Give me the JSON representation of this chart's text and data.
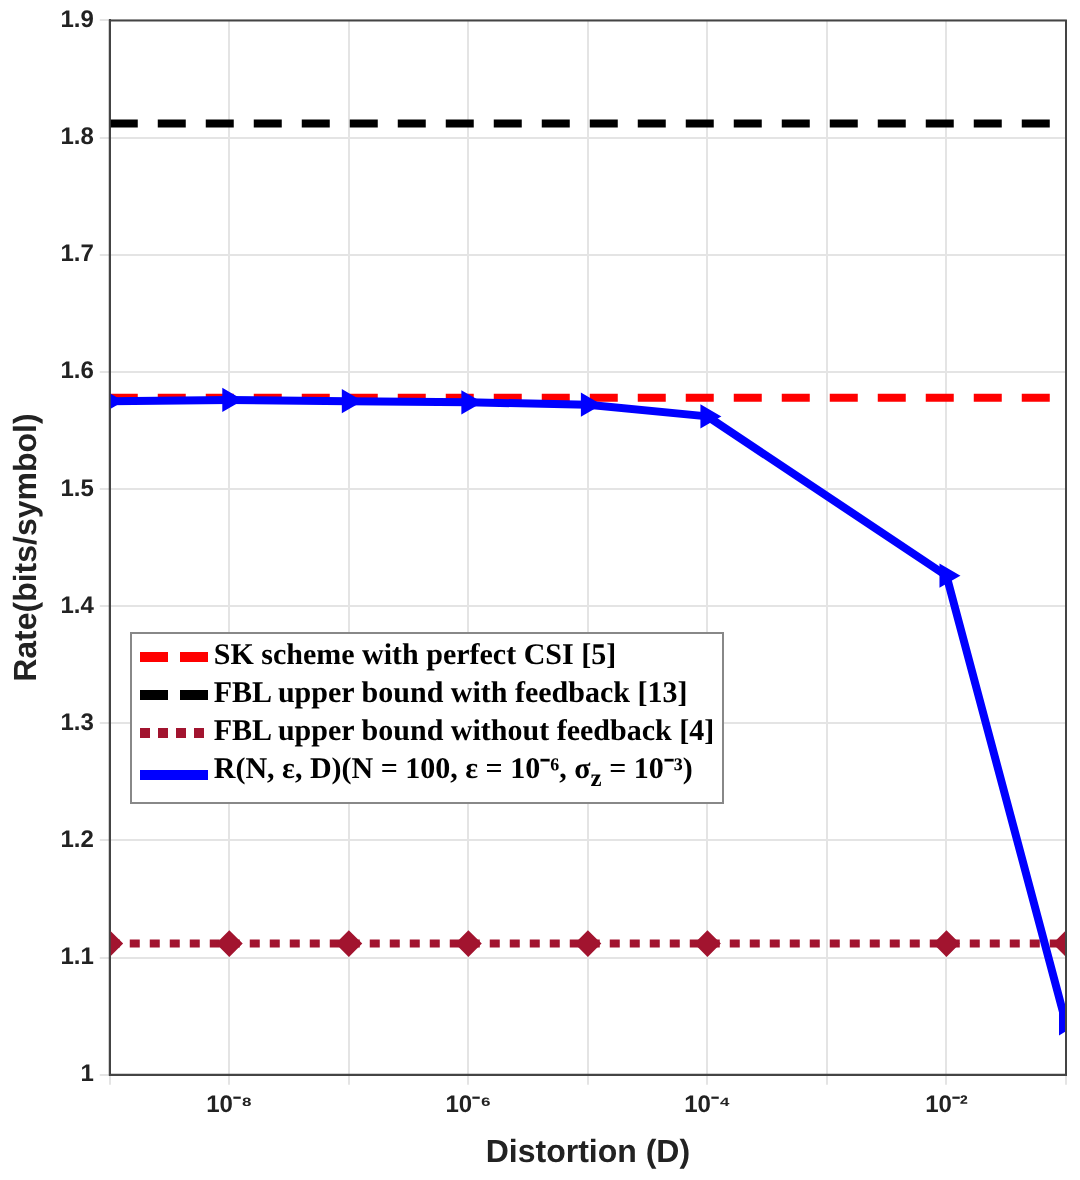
{
  "chart_data": {
    "type": "line",
    "xlabel": "Distortion (D)",
    "ylabel": "Rate(bits/symbol)",
    "log": "x",
    "grid": true,
    "legend": "left",
    "xlim": [
      1e-09,
      0.1
    ],
    "xticks": [
      {
        "value": 1e-09,
        "label": null
      },
      {
        "value": 1e-08,
        "label": "10⁻⁸"
      },
      {
        "value": 1e-07,
        "label": null
      },
      {
        "value": 1e-06,
        "label": "10⁻⁶"
      },
      {
        "value": 1e-05,
        "label": null
      },
      {
        "value": 0.0001,
        "label": "10⁻⁴"
      },
      {
        "value": 0.001,
        "label": null
      },
      {
        "value": 0.01,
        "label": "10⁻²"
      },
      {
        "value": 0.1,
        "label": null
      }
    ],
    "ylim": [
      1,
      1.9
    ],
    "yticks": [
      1,
      1.1,
      1.2,
      1.3,
      1.4,
      1.5,
      1.6,
      1.7,
      1.8,
      1.9
    ],
    "series": [
      {
        "name": "SK scheme with perfect CSI [5]",
        "color": "#ff0000",
        "line_style": "dashed",
        "marker": "none",
        "x": [
          1e-09,
          0.1
        ],
        "values": [
          1.578,
          1.578
        ]
      },
      {
        "name": "FBL upper bound with feedback [13]",
        "color": "#000000",
        "line_style": "dashed",
        "marker": "none",
        "x": [
          1e-09,
          0.1
        ],
        "values": [
          1.812,
          1.812
        ]
      },
      {
        "name": "FBL upper bound without feedback [4]",
        "color": "#a2142f",
        "line_style": "dotted",
        "marker": "diamond",
        "x": [
          1e-09,
          1e-08,
          1e-07,
          1e-06,
          1e-05,
          0.0001,
          0.01,
          0.1
        ],
        "values": [
          1.112,
          1.112,
          1.112,
          1.112,
          1.112,
          1.112,
          1.112,
          1.112
        ]
      },
      {
        "name": "R(N, ε, D)(N = 100, ε = 10⁻⁶, σ$_{z}$ = 10⁻³)",
        "color": "#0000ff",
        "line_style": "solid",
        "marker": "triangle",
        "x": [
          1e-09,
          1e-08,
          1e-07,
          1e-06,
          1e-05,
          0.0001,
          0.01,
          0.1
        ],
        "values": [
          1.575,
          1.576,
          1.575,
          1.574,
          1.572,
          1.562,
          1.426,
          1.044
        ]
      }
    ]
  }
}
